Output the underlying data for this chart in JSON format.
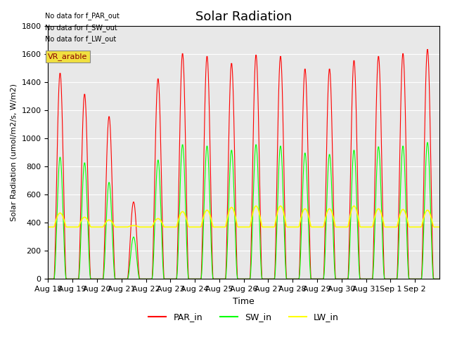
{
  "title": "Solar Radiation",
  "ylabel": "Solar Radiation (umol/m2/s, W/m2)",
  "xlabel": "Time",
  "ylim": [
    0,
    1800
  ],
  "bg_color": "#e8e8e8",
  "annotations": [
    "No data for f_PAR_out",
    "No data for f_SW_out",
    "No data for f_LW_out"
  ],
  "vr_label": "VR_arable",
  "xtick_labels": [
    "Aug 18",
    "Aug 19",
    "Aug 20",
    "Aug 21",
    "Aug 22",
    "Aug 23",
    "Aug 24",
    "Aug 25",
    "Aug 26",
    "Aug 27",
    "Aug 28",
    "Aug 29",
    "Aug 30",
    "Aug 31",
    "Sep 1",
    "Sep 2"
  ],
  "par_peaks": [
    1470,
    1320,
    1160,
    550,
    1430,
    1610,
    1590,
    1540,
    1600,
    1590,
    1500,
    1500,
    1560,
    1590,
    1610,
    1640
  ],
  "sw_peaks": [
    870,
    830,
    690,
    300,
    850,
    960,
    950,
    920,
    960,
    950,
    900,
    890,
    920,
    945,
    950,
    975
  ],
  "lw_base": 370,
  "lw_day_peaks": [
    470,
    440,
    420,
    380,
    430,
    480,
    490,
    510,
    520,
    520,
    500,
    500,
    520,
    500,
    495,
    490
  ],
  "n_days": 16,
  "pts_per_day": 48,
  "yticks": [
    0,
    200,
    400,
    600,
    800,
    1000,
    1200,
    1400,
    1600,
    1800
  ]
}
